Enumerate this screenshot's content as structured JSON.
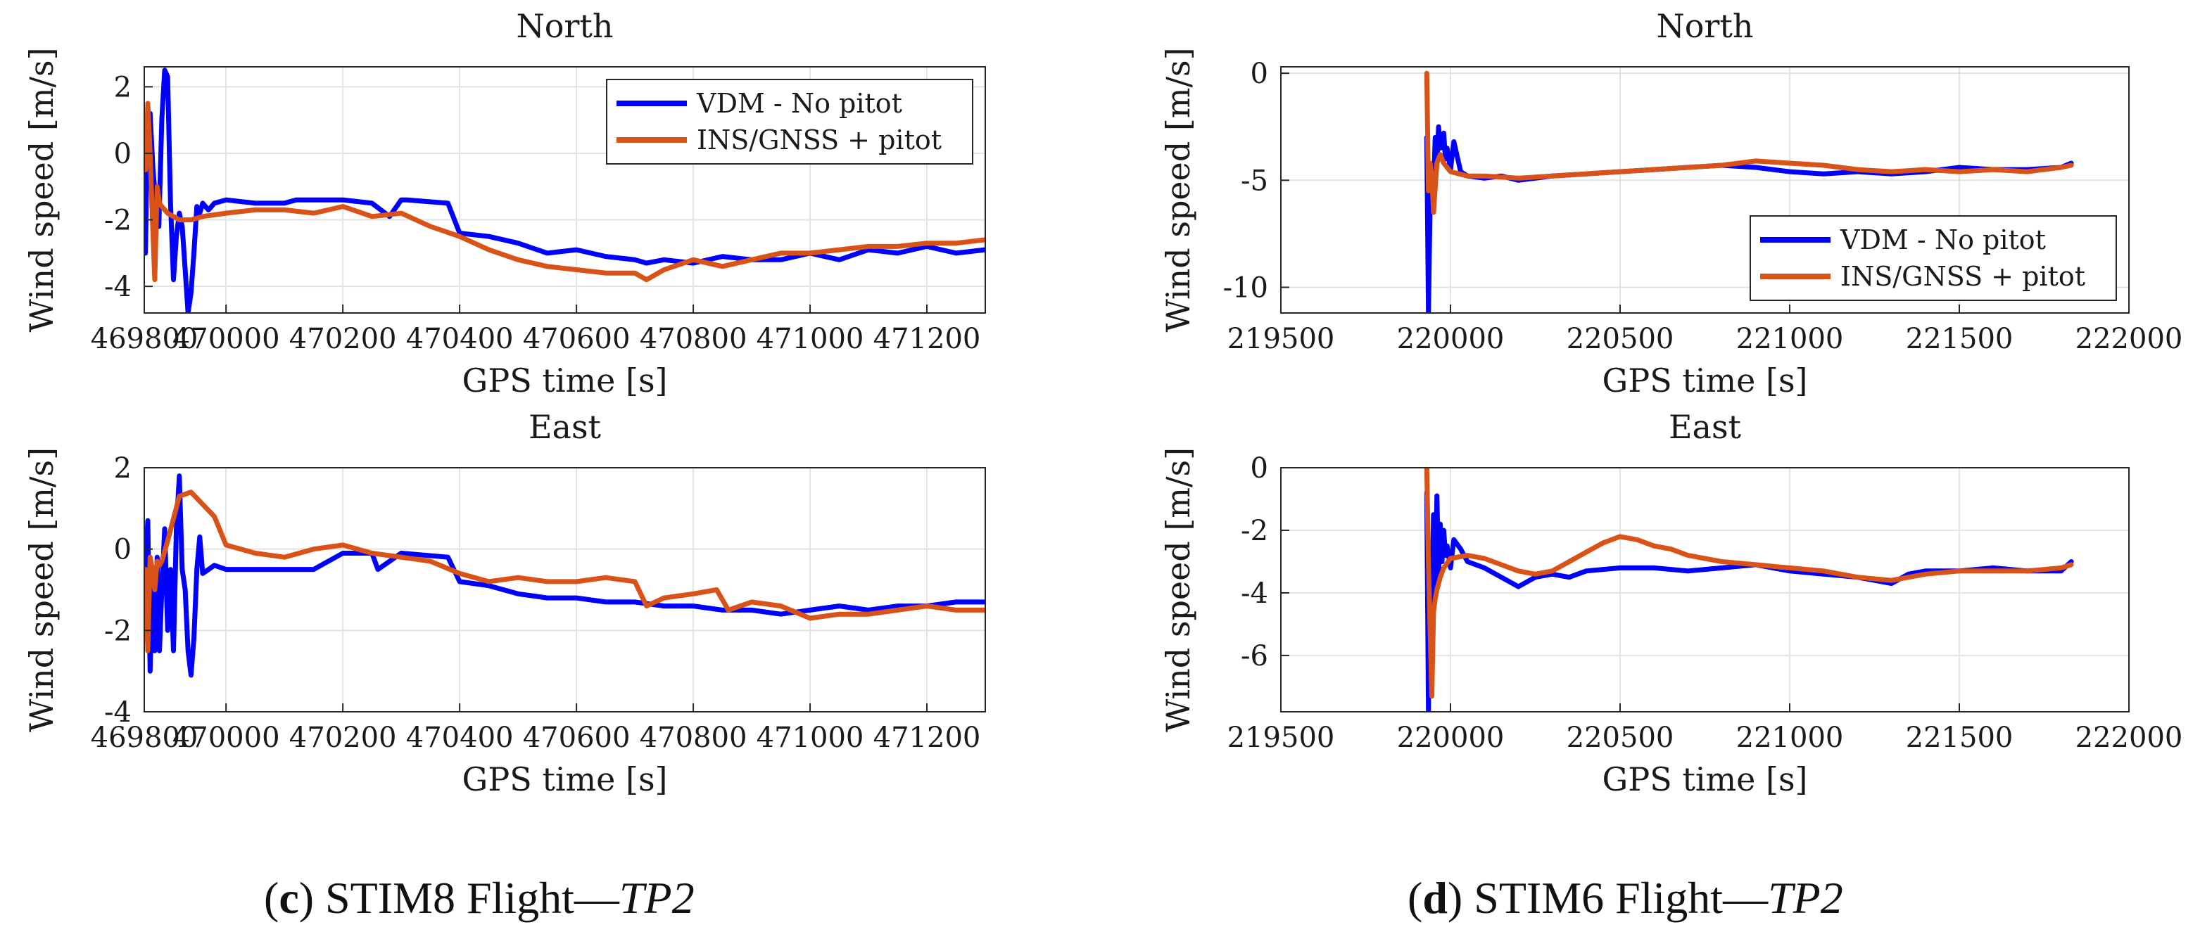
{
  "chart_data": [
    {
      "id": "c-north",
      "type": "line",
      "title": "North",
      "xlabel": "GPS time [s]",
      "ylabel": "Wind speed [m/s]",
      "xlim": [
        469860,
        471300
      ],
      "ylim": [
        -4.8,
        2.6
      ],
      "xticks": [
        469800,
        470000,
        470200,
        470400,
        470600,
        470800,
        471000,
        471200
      ],
      "xtick_labels": [
        "469800",
        "470000",
        "470200",
        "470400",
        "470600",
        "470800",
        "471000",
        "471200"
      ],
      "yticks": [
        -4,
        -2,
        0,
        2
      ],
      "ytick_labels": [
        "-4",
        "-2",
        "0",
        "2"
      ],
      "grid": true,
      "legend": "top-right",
      "series": [
        {
          "name": "VDM - No pitot",
          "color": "#0000ff",
          "x": [
            469862,
            469865,
            469870,
            469875,
            469880,
            469885,
            469890,
            469895,
            469900,
            469905,
            469910,
            469915,
            469920,
            469925,
            469930,
            469935,
            469940,
            469945,
            469950,
            469955,
            469960,
            469970,
            469980,
            470000,
            470050,
            470100,
            470120,
            470150,
            470200,
            470250,
            470280,
            470300,
            470310,
            470380,
            470400,
            470450,
            470500,
            470550,
            470600,
            470650,
            470700,
            470720,
            470750,
            470800,
            470850,
            470900,
            470950,
            471000,
            471050,
            471100,
            471150,
            471200,
            471250,
            471300
          ],
          "y": [
            -3.0,
            0.5,
            1.2,
            -0.5,
            -1.5,
            -2.2,
            1.0,
            2.5,
            2.3,
            -1.5,
            -3.8,
            -2.5,
            -1.8,
            -2.2,
            -3.5,
            -4.8,
            -4.2,
            -3.0,
            -1.6,
            -1.8,
            -1.5,
            -1.7,
            -1.5,
            -1.4,
            -1.5,
            -1.5,
            -1.4,
            -1.4,
            -1.4,
            -1.5,
            -1.9,
            -1.4,
            -1.4,
            -1.5,
            -2.4,
            -2.5,
            -2.7,
            -3.0,
            -2.9,
            -3.1,
            -3.2,
            -3.3,
            -3.2,
            -3.3,
            -3.1,
            -3.2,
            -3.2,
            -3.0,
            -3.2,
            -2.9,
            -3.0,
            -2.8,
            -3.0,
            -2.9
          ]
        },
        {
          "name": "INS/GNSS + pitot",
          "color": "#d95319",
          "x": [
            469862,
            469866,
            469870,
            469874,
            469878,
            469882,
            469886,
            469890,
            469900,
            469920,
            469940,
            469960,
            470000,
            470050,
            470100,
            470150,
            470200,
            470250,
            470300,
            470350,
            470400,
            470450,
            470500,
            470550,
            470600,
            470650,
            470700,
            470720,
            470750,
            470800,
            470850,
            470900,
            470950,
            471000,
            471050,
            471100,
            471150,
            471200,
            471250,
            471300
          ],
          "y": [
            -0.5,
            1.5,
            0.0,
            -2.0,
            -3.8,
            -1.0,
            -1.5,
            -1.6,
            -1.8,
            -2.0,
            -2.0,
            -1.9,
            -1.8,
            -1.7,
            -1.7,
            -1.8,
            -1.6,
            -1.9,
            -1.8,
            -2.2,
            -2.5,
            -2.9,
            -3.2,
            -3.4,
            -3.5,
            -3.6,
            -3.6,
            -3.8,
            -3.5,
            -3.2,
            -3.4,
            -3.2,
            -3.0,
            -3.0,
            -2.9,
            -2.8,
            -2.8,
            -2.7,
            -2.7,
            -2.6
          ]
        }
      ]
    },
    {
      "id": "c-east",
      "type": "line",
      "title": "East",
      "xlabel": "GPS time [s]",
      "ylabel": "Wind speed [m/s]",
      "xlim": [
        469860,
        471300
      ],
      "ylim": [
        -4,
        2
      ],
      "xticks": [
        469800,
        470000,
        470200,
        470400,
        470600,
        470800,
        471000,
        471200
      ],
      "xtick_labels": [
        "469800",
        "470000",
        "470200",
        "470400",
        "470600",
        "470800",
        "471000",
        "471200"
      ],
      "yticks": [
        -4,
        -2,
        0,
        2
      ],
      "ytick_labels": [
        "-4",
        "-2",
        "0",
        "2"
      ],
      "grid": true,
      "legend": "none",
      "series": [
        {
          "name": "VDM - No pitot",
          "color": "#0000ff",
          "x": [
            469862,
            469866,
            469870,
            469874,
            469878,
            469882,
            469886,
            469890,
            469895,
            469900,
            469905,
            469910,
            469915,
            469920,
            469925,
            469930,
            469935,
            469940,
            469945,
            469950,
            469955,
            469960,
            469970,
            469980,
            470000,
            470050,
            470100,
            470150,
            470200,
            470250,
            470260,
            470300,
            470380,
            470400,
            470450,
            470500,
            470550,
            470600,
            470650,
            470700,
            470750,
            470800,
            470850,
            470900,
            470950,
            471000,
            471050,
            471100,
            471150,
            471200,
            471250,
            471300
          ],
          "y": [
            -0.5,
            0.7,
            -3.0,
            -0.8,
            -2.5,
            -0.2,
            -2.5,
            -1.0,
            0.5,
            -2.0,
            -0.5,
            -2.5,
            0.5,
            1.8,
            -0.5,
            -1.0,
            -2.5,
            -3.1,
            -2.2,
            -0.5,
            0.3,
            -0.6,
            -0.5,
            -0.4,
            -0.5,
            -0.5,
            -0.5,
            -0.5,
            -0.1,
            -0.1,
            -0.5,
            -0.1,
            -0.2,
            -0.8,
            -0.9,
            -1.1,
            -1.2,
            -1.2,
            -1.3,
            -1.3,
            -1.4,
            -1.4,
            -1.5,
            -1.5,
            -1.6,
            -1.5,
            -1.4,
            -1.5,
            -1.4,
            -1.4,
            -1.3,
            -1.3
          ]
        },
        {
          "name": "INS/GNSS + pitot",
          "color": "#d95319",
          "x": [
            469862,
            469866,
            469870,
            469874,
            469878,
            469882,
            469886,
            469890,
            469900,
            469920,
            469940,
            469960,
            469980,
            470000,
            470050,
            470100,
            470150,
            470200,
            470250,
            470300,
            470350,
            470400,
            470450,
            470500,
            470550,
            470600,
            470650,
            470700,
            470720,
            470750,
            470800,
            470840,
            470860,
            470900,
            470950,
            471000,
            471050,
            471100,
            471150,
            471200,
            471250,
            471300
          ],
          "y": [
            -0.5,
            -2.5,
            -0.2,
            -0.5,
            -1.0,
            -0.3,
            -0.4,
            -0.3,
            0.2,
            1.3,
            1.4,
            1.1,
            0.8,
            0.1,
            -0.1,
            -0.2,
            0.0,
            0.1,
            -0.1,
            -0.2,
            -0.3,
            -0.6,
            -0.8,
            -0.7,
            -0.8,
            -0.8,
            -0.7,
            -0.8,
            -1.4,
            -1.2,
            -1.1,
            -1.0,
            -1.5,
            -1.3,
            -1.4,
            -1.7,
            -1.6,
            -1.6,
            -1.5,
            -1.4,
            -1.5,
            -1.5
          ]
        }
      ]
    },
    {
      "id": "d-north",
      "type": "line",
      "title": "North",
      "xlabel": "GPS time [s]",
      "ylabel": "Wind speed [m/s]",
      "xlim": [
        219500,
        222000
      ],
      "ylim": [
        -11.2,
        0.3
      ],
      "xticks": [
        219500,
        220000,
        220500,
        221000,
        221500,
        222000
      ],
      "xtick_labels": [
        "219500",
        "220000",
        "220500",
        "221000",
        "221500",
        "222000"
      ],
      "yticks": [
        -10,
        -5,
        0
      ],
      "ytick_labels": [
        "-10",
        "-5",
        "0"
      ],
      "grid": true,
      "legend": "bottom-right",
      "series": [
        {
          "name": "VDM - No pitot",
          "color": "#0000ff",
          "x": [
            219930,
            219935,
            219940,
            219945,
            219950,
            219955,
            219960,
            219965,
            219970,
            219975,
            219980,
            219985,
            219990,
            220000,
            220010,
            220030,
            220050,
            220100,
            220150,
            220200,
            220250,
            220300,
            220400,
            220500,
            220600,
            220700,
            220800,
            220900,
            221000,
            221100,
            221200,
            221300,
            221400,
            221500,
            221600,
            221700,
            221800,
            221830
          ],
          "y": [
            -3.0,
            -11.2,
            -6.0,
            -4.5,
            -5.5,
            -3.0,
            -4.2,
            -2.5,
            -3.5,
            -3.0,
            -2.8,
            -4.0,
            -3.5,
            -4.5,
            -3.2,
            -4.6,
            -4.8,
            -4.9,
            -4.8,
            -5.0,
            -4.9,
            -4.8,
            -4.7,
            -4.6,
            -4.5,
            -4.4,
            -4.3,
            -4.4,
            -4.6,
            -4.7,
            -4.6,
            -4.7,
            -4.6,
            -4.4,
            -4.5,
            -4.5,
            -4.4,
            -4.2
          ]
        },
        {
          "name": "INS/GNSS + pitot",
          "color": "#d95319",
          "x": [
            219930,
            219935,
            219940,
            219945,
            219950,
            219960,
            219970,
            219980,
            220000,
            220050,
            220100,
            220200,
            220300,
            220400,
            220500,
            220600,
            220700,
            220800,
            220900,
            221000,
            221100,
            221200,
            221300,
            221400,
            221500,
            221600,
            221700,
            221800,
            221830
          ],
          "y": [
            0.0,
            -5.5,
            -4.2,
            -4.8,
            -6.5,
            -4.2,
            -3.8,
            -4.2,
            -4.6,
            -4.8,
            -4.8,
            -4.9,
            -4.8,
            -4.7,
            -4.6,
            -4.5,
            -4.4,
            -4.3,
            -4.1,
            -4.2,
            -4.3,
            -4.5,
            -4.6,
            -4.5,
            -4.6,
            -4.5,
            -4.6,
            -4.4,
            -4.3
          ]
        }
      ]
    },
    {
      "id": "d-east",
      "type": "line",
      "title": "East",
      "xlabel": "GPS time [s]",
      "ylabel": "Wind speed [m/s]",
      "xlim": [
        219500,
        222000
      ],
      "ylim": [
        -7.8,
        0
      ],
      "xticks": [
        219500,
        220000,
        220500,
        221000,
        221500,
        222000
      ],
      "xtick_labels": [
        "219500",
        "220000",
        "220500",
        "221000",
        "221500",
        "222000"
      ],
      "yticks": [
        -6,
        -4,
        -2,
        0
      ],
      "ytick_labels": [
        "-6",
        "-4",
        "-2",
        "0"
      ],
      "grid": true,
      "legend": "none",
      "series": [
        {
          "name": "VDM - No pitot",
          "color": "#0000ff",
          "x": [
            219930,
            219935,
            219940,
            219945,
            219950,
            219955,
            219960,
            219965,
            219970,
            219975,
            219980,
            219985,
            219990,
            220000,
            220010,
            220030,
            220050,
            220100,
            220150,
            220200,
            220250,
            220300,
            220350,
            220400,
            220500,
            220600,
            220700,
            220800,
            220900,
            221000,
            221100,
            221200,
            221300,
            221350,
            221400,
            221500,
            221600,
            221700,
            221800,
            221830
          ],
          "y": [
            -0.8,
            -7.8,
            -3.0,
            -4.5,
            -1.5,
            -4.0,
            -0.9,
            -3.5,
            -1.8,
            -3.0,
            -2.0,
            -2.8,
            -2.5,
            -3.2,
            -2.3,
            -2.6,
            -3.0,
            -3.2,
            -3.5,
            -3.8,
            -3.5,
            -3.4,
            -3.5,
            -3.3,
            -3.2,
            -3.2,
            -3.3,
            -3.2,
            -3.1,
            -3.3,
            -3.4,
            -3.5,
            -3.7,
            -3.4,
            -3.3,
            -3.3,
            -3.2,
            -3.3,
            -3.3,
            -3.0
          ]
        },
        {
          "name": "INS/GNSS + pitot",
          "color": "#d95319",
          "x": [
            219930,
            219935,
            219940,
            219945,
            219950,
            219955,
            219960,
            219970,
            219980,
            220000,
            220050,
            220100,
            220150,
            220200,
            220250,
            220300,
            220350,
            220400,
            220450,
            220500,
            220550,
            220600,
            220650,
            220700,
            220800,
            220900,
            221000,
            221100,
            221200,
            221300,
            221400,
            221500,
            221600,
            221700,
            221800,
            221830
          ],
          "y": [
            0.0,
            -3.0,
            -5.2,
            -7.3,
            -4.6,
            -4.2,
            -3.9,
            -3.5,
            -3.2,
            -2.9,
            -2.8,
            -2.9,
            -3.1,
            -3.3,
            -3.4,
            -3.3,
            -3.0,
            -2.7,
            -2.4,
            -2.2,
            -2.3,
            -2.5,
            -2.6,
            -2.8,
            -3.0,
            -3.1,
            -3.2,
            -3.3,
            -3.5,
            -3.6,
            -3.4,
            -3.3,
            -3.3,
            -3.3,
            -3.2,
            -3.1
          ]
        }
      ]
    }
  ],
  "captions": {
    "c": {
      "letter": "c",
      "text": " STIM8 Flight—",
      "italic": "TP2"
    },
    "d": {
      "letter": "d",
      "text": " STIM6 Flight—",
      "italic": "TP2"
    }
  }
}
